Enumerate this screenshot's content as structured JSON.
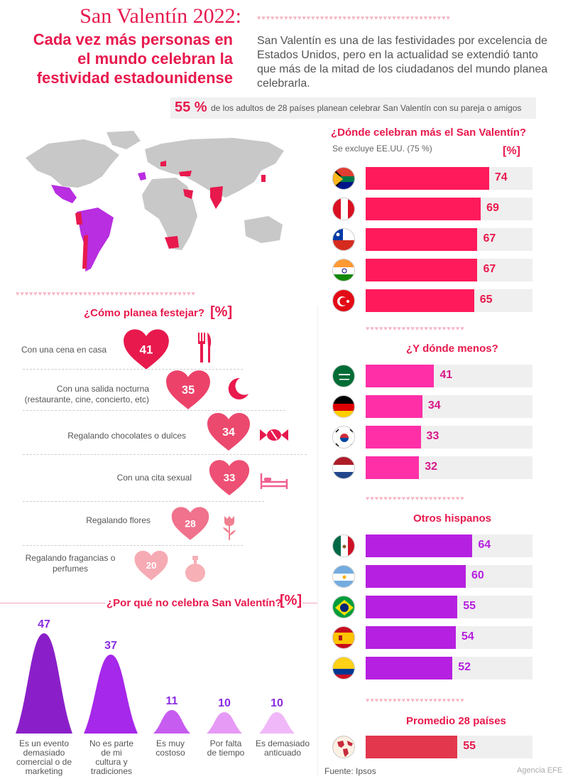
{
  "header": {
    "title": "San Valentín 2022:",
    "subtitle_lines": [
      "Cada vez más personas en",
      "el mundo celebran la",
      "festividad estadounidense"
    ],
    "intro": "San Valentín es una de las festividades por excelencia de Estados Unidos, pero en la actualidad se extendió tanto que más de la mitad de los ciudadanos del mundo planea celebrarla.",
    "key_value": "55 %",
    "key_text": "de los adultos de 28 países planean celebrar San Valentín con su pareja o amigos"
  },
  "map": {
    "name": "world-map"
  },
  "colors": {
    "top": "#ff1a5b",
    "bottom": "#ff2fa8",
    "hispanos": "#b620e0",
    "average": "#e2374d",
    "accent": "#e8194d",
    "purple": "#8a2be2"
  },
  "chart_data": [
    {
      "type": "bar",
      "title": "¿Dónde celebran más el San Valentín?",
      "subtitle": "Se excluye EE.UU. (75 %)",
      "unit": "[%]",
      "categories": [
        "south-africa",
        "peru",
        "chile",
        "india",
        "turkey"
      ],
      "values": [
        74,
        69,
        67,
        67,
        65
      ],
      "xlim": [
        0,
        100
      ]
    },
    {
      "type": "bar",
      "title": "¿Y dónde menos?",
      "categories": [
        "saudi-arabia",
        "germany",
        "south-korea",
        "netherlands"
      ],
      "values": [
        41,
        34,
        33,
        32
      ],
      "xlim": [
        0,
        100
      ]
    },
    {
      "type": "bar",
      "title": "Otros hispanos",
      "categories": [
        "mexico",
        "argentina",
        "brazil",
        "spain",
        "colombia"
      ],
      "values": [
        64,
        60,
        55,
        54,
        52
      ],
      "xlim": [
        0,
        100
      ]
    },
    {
      "type": "bar",
      "title": "Promedio 28 países",
      "categories": [
        "world"
      ],
      "values": [
        55
      ],
      "xlim": [
        0,
        100
      ]
    },
    {
      "type": "bar",
      "title": "¿Cómo planea festejar?",
      "unit": "[%]",
      "categories": [
        "Con una cena en casa",
        "Con una salida nocturna\n(restaurante, cine, concierto, etc)",
        "Regalando chocolates o dulces",
        "Con una cita sexual",
        "Regalando flores",
        "Regalando fragancias o\nperfumes"
      ],
      "values": [
        41,
        35,
        34,
        33,
        28,
        20
      ],
      "icons": [
        "cutlery-icon",
        "moon-icon",
        "candy-icon",
        "bed-icon",
        "rose-icon",
        "perfume-icon"
      ]
    },
    {
      "type": "bar",
      "title": "¿Por qué no celebra San Valentín?",
      "unit": "[%]",
      "categories": [
        "Es un evento\ndemasiado\ncomercial o de\nmarketing",
        "No es parte\nde mi\ncultura y\ntradiciones",
        "Es muy\ncostoso",
        "Por falta\nde tiempo",
        "Es demasiado\nanticuado"
      ],
      "values": [
        47,
        37,
        11,
        10,
        10
      ],
      "ylim": [
        0,
        50
      ]
    }
  ],
  "footer": {
    "source": "Fuente: Ipsos",
    "credit": "Agencia EFE"
  }
}
